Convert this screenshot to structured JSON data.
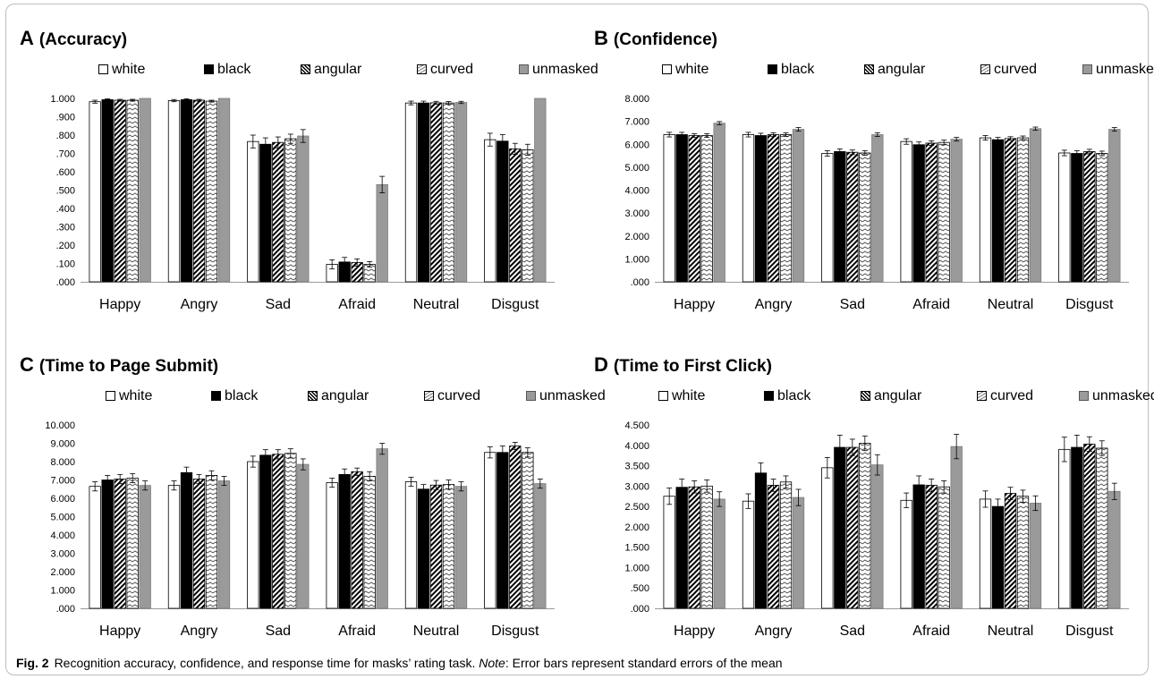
{
  "legend": [
    {
      "key": "white",
      "label": "white"
    },
    {
      "key": "black",
      "label": "black"
    },
    {
      "key": "angular",
      "label": "angular"
    },
    {
      "key": "curved",
      "label": "curved"
    },
    {
      "key": "unmasked",
      "label": "unmasked"
    }
  ],
  "caption": {
    "fig": "Fig. 2",
    "text": "Recognition accuracy, confidence, and response time for masks’ rating task.",
    "note_label": "Note",
    "note_text": ": Error bars represent standard errors of the mean"
  },
  "chart_data": [
    {
      "id": "A",
      "type": "bar",
      "letter": "A",
      "title": "(Accuracy)",
      "categories": [
        "Happy",
        "Angry",
        "Sad",
        "Afraid",
        "Neutral",
        "Disgust"
      ],
      "ylim": [
        0,
        1
      ],
      "yticks": [
        ".000",
        ".100",
        ".200",
        ".300",
        ".400",
        ".500",
        ".600",
        ".700",
        ".800",
        ".900",
        "1.000"
      ],
      "series": [
        {
          "name": "white",
          "values": [
            0.982,
            0.988,
            0.765,
            0.095,
            0.975,
            0.775
          ],
          "errors": [
            0.008,
            0.006,
            0.035,
            0.025,
            0.01,
            0.035
          ]
        },
        {
          "name": "black",
          "values": [
            0.993,
            0.993,
            0.75,
            0.108,
            0.975,
            0.767
          ],
          "errors": [
            0.005,
            0.005,
            0.035,
            0.025,
            0.01,
            0.035
          ]
        },
        {
          "name": "angular",
          "values": [
            0.99,
            0.99,
            0.76,
            0.105,
            0.976,
            0.725
          ],
          "errors": [
            0.005,
            0.005,
            0.03,
            0.02,
            0.008,
            0.03
          ]
        },
        {
          "name": "curved",
          "values": [
            0.99,
            0.985,
            0.78,
            0.095,
            0.975,
            0.72
          ],
          "errors": [
            0.005,
            0.005,
            0.025,
            0.015,
            0.008,
            0.03
          ]
        },
        {
          "name": "unmasked",
          "values": [
            1.0,
            1.0,
            0.795,
            0.53,
            0.978,
            1.0
          ],
          "errors": [
            0.0,
            0.0,
            0.035,
            0.045,
            0.006,
            0.0
          ]
        }
      ]
    },
    {
      "id": "B",
      "type": "bar",
      "letter": "B",
      "title": "(Confidence)",
      "categories": [
        "Happy",
        "Angry",
        "Sad",
        "Afraid",
        "Neutral",
        "Disgust"
      ],
      "ylim": [
        0,
        8
      ],
      "yticks": [
        ".000",
        "1.000",
        "2.000",
        "3.000",
        "4.000",
        "5.000",
        "6.000",
        "7.000",
        "8.000"
      ],
      "series": [
        {
          "name": "white",
          "values": [
            6.42,
            6.42,
            5.6,
            6.12,
            6.28,
            5.62
          ],
          "errors": [
            0.1,
            0.1,
            0.12,
            0.12,
            0.1,
            0.12
          ]
        },
        {
          "name": "black",
          "values": [
            6.42,
            6.38,
            5.68,
            5.98,
            6.2,
            5.6
          ],
          "errors": [
            0.1,
            0.1,
            0.12,
            0.12,
            0.1,
            0.12
          ]
        },
        {
          "name": "angular",
          "values": [
            6.38,
            6.42,
            5.65,
            6.05,
            6.25,
            5.68
          ],
          "errors": [
            0.08,
            0.08,
            0.1,
            0.1,
            0.08,
            0.1
          ]
        },
        {
          "name": "curved",
          "values": [
            6.38,
            6.42,
            5.62,
            6.08,
            6.28,
            5.6
          ],
          "errors": [
            0.08,
            0.08,
            0.1,
            0.1,
            0.08,
            0.1
          ]
        },
        {
          "name": "unmasked",
          "values": [
            6.92,
            6.65,
            6.42,
            6.22,
            6.68,
            6.65
          ],
          "errors": [
            0.07,
            0.08,
            0.08,
            0.08,
            0.07,
            0.08
          ]
        }
      ]
    },
    {
      "id": "C",
      "type": "bar",
      "letter": "C",
      "title": "(Time to Page Submit)",
      "categories": [
        "Happy",
        "Angry",
        "Sad",
        "Afraid",
        "Neutral",
        "Disgust"
      ],
      "ylim": [
        0,
        10
      ],
      "yticks": [
        ".000",
        "1.000",
        "2.000",
        "3.000",
        "4.000",
        "5.000",
        "6.000",
        "7.000",
        "8.000",
        "9.000",
        "10.000"
      ],
      "series": [
        {
          "name": "white",
          "values": [
            6.65,
            6.7,
            8.0,
            6.85,
            6.9,
            8.5
          ],
          "errors": [
            0.25,
            0.25,
            0.3,
            0.25,
            0.25,
            0.3
          ]
        },
        {
          "name": "black",
          "values": [
            7.0,
            7.4,
            8.35,
            7.3,
            6.5,
            8.5
          ],
          "errors": [
            0.25,
            0.3,
            0.3,
            0.3,
            0.25,
            0.35
          ]
        },
        {
          "name": "angular",
          "values": [
            7.05,
            7.05,
            8.4,
            7.45,
            6.72,
            8.85
          ],
          "errors": [
            0.25,
            0.25,
            0.25,
            0.2,
            0.25,
            0.2
          ]
        },
        {
          "name": "curved",
          "values": [
            7.1,
            7.25,
            8.45,
            7.2,
            6.75,
            8.5
          ],
          "errors": [
            0.25,
            0.25,
            0.25,
            0.25,
            0.25,
            0.25
          ]
        },
        {
          "name": "unmasked",
          "values": [
            6.7,
            6.95,
            7.85,
            8.7,
            6.65,
            6.8
          ],
          "errors": [
            0.25,
            0.25,
            0.3,
            0.3,
            0.25,
            0.25
          ]
        }
      ]
    },
    {
      "id": "D",
      "type": "bar",
      "letter": "D",
      "title": "(Time to First Click)",
      "categories": [
        "Happy",
        "Angry",
        "Sad",
        "Afraid",
        "Neutral",
        "Disgust"
      ],
      "ylim": [
        0,
        4.5
      ],
      "yticks": [
        ".000",
        ".500",
        "1.000",
        "1.500",
        "2.000",
        "2.500",
        "3.000",
        "3.500",
        "4.000",
        "4.500"
      ],
      "series": [
        {
          "name": "white",
          "values": [
            2.75,
            2.63,
            3.45,
            2.65,
            2.68,
            3.9
          ],
          "errors": [
            0.2,
            0.18,
            0.25,
            0.18,
            0.2,
            0.3
          ]
        },
        {
          "name": "black",
          "values": [
            2.97,
            3.32,
            3.95,
            3.03,
            2.5,
            3.95
          ],
          "errors": [
            0.2,
            0.25,
            0.3,
            0.22,
            0.18,
            0.3
          ]
        },
        {
          "name": "angular",
          "values": [
            2.98,
            3.02,
            3.95,
            3.02,
            2.82,
            4.03
          ],
          "errors": [
            0.15,
            0.15,
            0.2,
            0.15,
            0.15,
            0.18
          ]
        },
        {
          "name": "curved",
          "values": [
            3.0,
            3.1,
            4.05,
            2.98,
            2.75,
            3.93
          ],
          "errors": [
            0.15,
            0.15,
            0.18,
            0.15,
            0.15,
            0.18
          ]
        },
        {
          "name": "unmasked",
          "values": [
            2.68,
            2.72,
            3.52,
            3.97,
            2.58,
            2.87
          ],
          "errors": [
            0.18,
            0.2,
            0.25,
            0.3,
            0.18,
            0.2
          ]
        }
      ]
    }
  ]
}
